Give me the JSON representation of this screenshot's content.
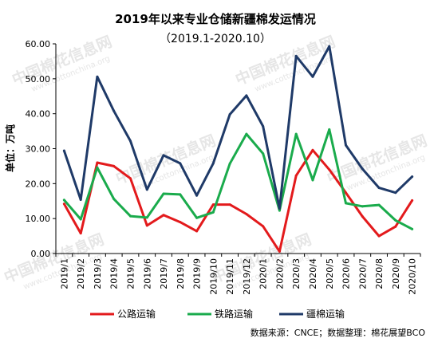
{
  "watermark": {
    "text_cn": "中国棉花信息网",
    "text_en": "www.cottonchina.org"
  },
  "footer": {
    "source": "数据来源：CNCE；数据整理：棉花展望BCO"
  },
  "chart_data": {
    "type": "line",
    "title": "2019年以来专业仓储新疆棉发运情况",
    "subtitle": "（2019.1-2020.10）",
    "xlabel": "",
    "ylabel": "单位：万吨",
    "ylim": [
      0,
      60
    ],
    "yticks": [
      "0.00",
      "10.00",
      "20.00",
      "30.00",
      "40.00",
      "50.00",
      "60.00"
    ],
    "grid": false,
    "legend_position": "bottom",
    "categories": [
      "2019/1",
      "2019/2",
      "2019/3",
      "2019/4",
      "2019/5",
      "2019/6",
      "2019/7",
      "2019/8",
      "2019/9",
      "2019/10",
      "2019/11",
      "2019/12",
      "2020/1",
      "2020/2",
      "2020/3",
      "2020/4",
      "2020/5",
      "2020/6",
      "2020/7",
      "2020/8",
      "2020/9",
      "2020/10"
    ],
    "series": [
      {
        "name": "公路运输",
        "color": "#e31a1c",
        "values": [
          14.2,
          5.8,
          26.0,
          25.0,
          21.5,
          8.0,
          11.0,
          9.0,
          6.4,
          14.0,
          14.0,
          11.3,
          7.8,
          0.6,
          22.3,
          29.6,
          24.0,
          17.4,
          10.6,
          5.0,
          7.7,
          15.2
        ]
      },
      {
        "name": "铁路运输",
        "color": "#1aab4c",
        "values": [
          15.3,
          9.8,
          24.6,
          15.6,
          10.7,
          10.3,
          17.1,
          16.9,
          10.2,
          11.8,
          25.7,
          34.2,
          28.6,
          12.3,
          34.2,
          21.0,
          35.5,
          14.4,
          13.5,
          13.9,
          9.5,
          7.0
        ]
      },
      {
        "name": "疆棉运输",
        "color": "#1f3a68",
        "values": [
          29.4,
          15.4,
          50.6,
          40.8,
          32.2,
          18.3,
          28.1,
          25.8,
          16.6,
          25.8,
          39.8,
          45.2,
          36.4,
          12.9,
          56.5,
          50.6,
          59.3,
          31.0,
          24.2,
          18.8,
          17.4,
          22.0
        ]
      }
    ]
  }
}
